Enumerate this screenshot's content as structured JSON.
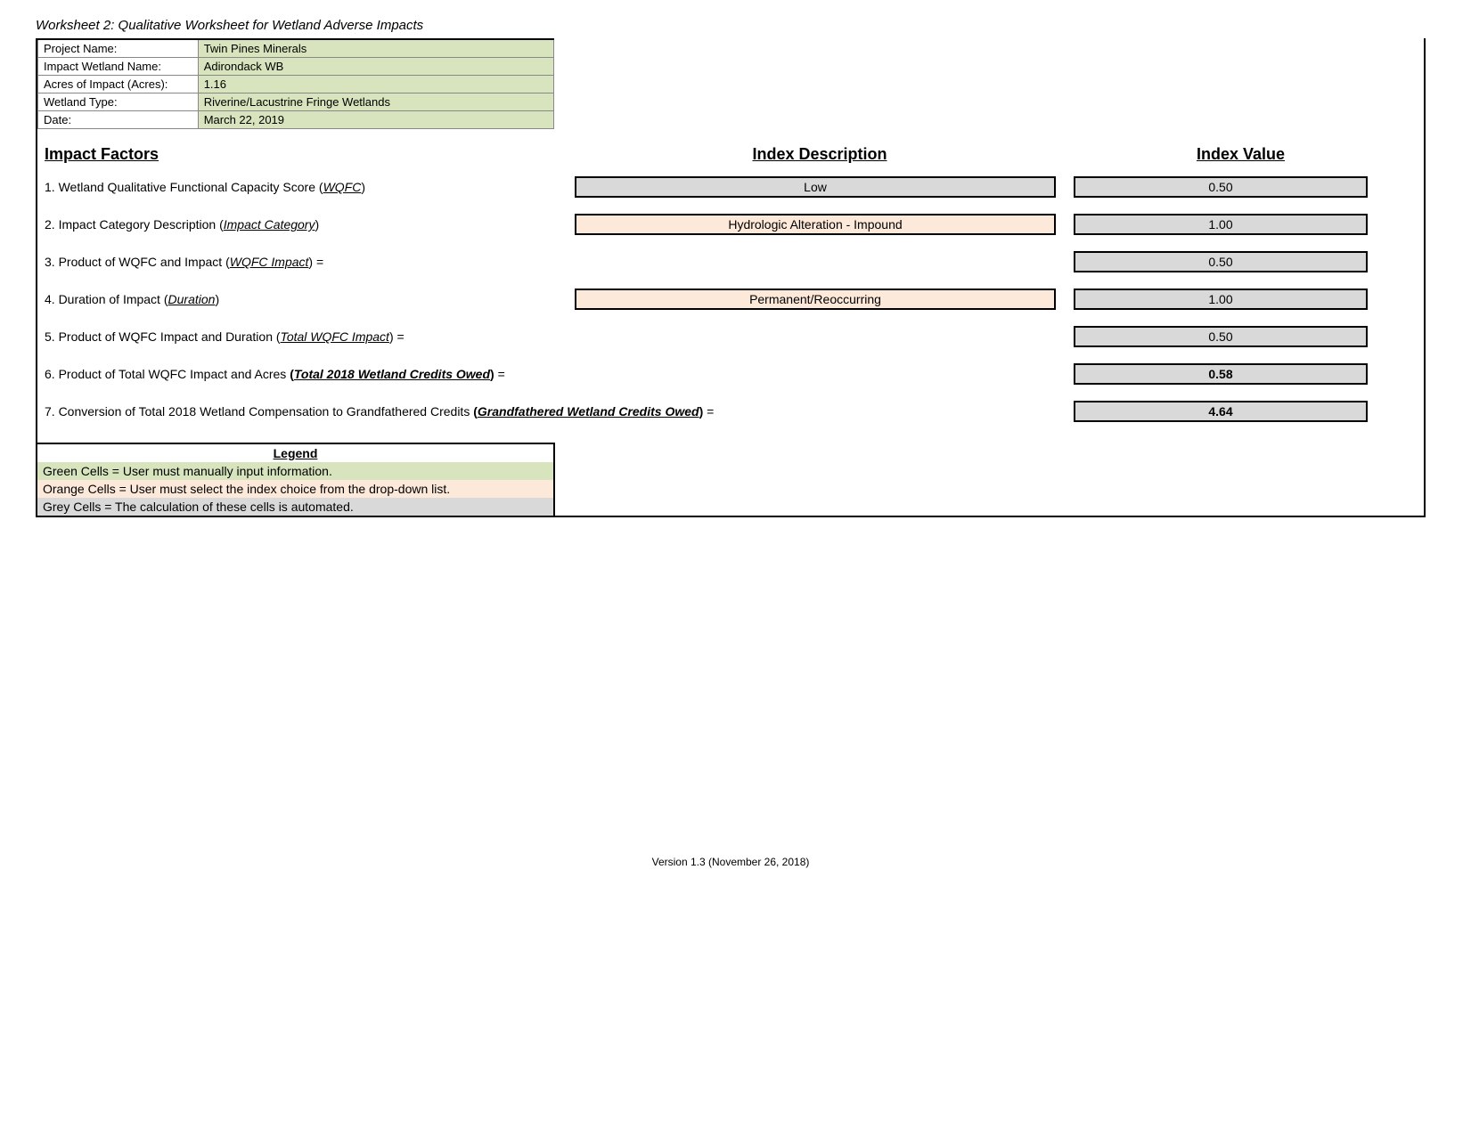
{
  "title": "Worksheet 2:  Qualitative Worksheet for Wetland Adverse Impacts",
  "header": {
    "rows": [
      {
        "label": "Project Name:",
        "value": "Twin Pines Minerals"
      },
      {
        "label": "Impact Wetland Name:",
        "value": "Adirondack WB"
      },
      {
        "label": "Acres of Impact (Acres):",
        "value": "1.16"
      },
      {
        "label": "Wetland Type:",
        "value": "Riverine/Lacustrine Fringe Wetlands"
      },
      {
        "label": "Date:",
        "value": "March 22, 2019"
      }
    ]
  },
  "section_headers": {
    "left": "Impact Factors",
    "mid": "Index Description",
    "right": "Index Value"
  },
  "factors": {
    "f1": {
      "prefix": "1. Wetland Qualitative Functional Capacity Score (",
      "term": "WQFC",
      "suffix": ")",
      "desc": "Low",
      "value": "0.50"
    },
    "f2": {
      "prefix": "2. Impact Category Description (",
      "term": "Impact Category",
      "suffix": ")",
      "desc": "Hydrologic Alteration - Impound",
      "value": "1.00"
    },
    "f3": {
      "prefix": "3. Product of WQFC and Impact (",
      "term": "WQFC Impact",
      "suffix": ") =",
      "value": "0.50"
    },
    "f4": {
      "prefix": "4. Duration of Impact (",
      "term": "Duration",
      "suffix": ")",
      "desc": "Permanent/Reoccurring",
      "value": "1.00"
    },
    "f5": {
      "prefix": "5. Product of WQFC Impact and Duration (",
      "term": "Total WQFC Impact",
      "suffix": ") =",
      "value": "0.50"
    },
    "f6": {
      "prefix": "6. Product of Total WQFC Impact and Acres ",
      "open": "(",
      "term": "Total 2018 Wetland Credits Owed",
      "close": ")",
      "suffix": " =",
      "value": "0.58"
    },
    "f7": {
      "prefix": "7. Conversion of Total 2018 Wetland Compensation to Grandfathered Credits ",
      "open": "(",
      "term": "Grandfathered Wetland Credits Owed",
      "close": ")",
      "suffix": " =",
      "value": "4.64"
    }
  },
  "legend": {
    "title": "Legend",
    "green": "Green Cells = User must manually input information.",
    "orange": "Orange Cells = User must select the index choice from the drop-down list.",
    "grey": "Grey Cells = The calculation of these cells is automated."
  },
  "footer": "Version 1.3 (November 26, 2018)",
  "colors": {
    "green_bg": "#d7e4bd",
    "orange_bg": "#fde9d9",
    "grey_bg": "#d9d9d9",
    "border": "#000000"
  }
}
